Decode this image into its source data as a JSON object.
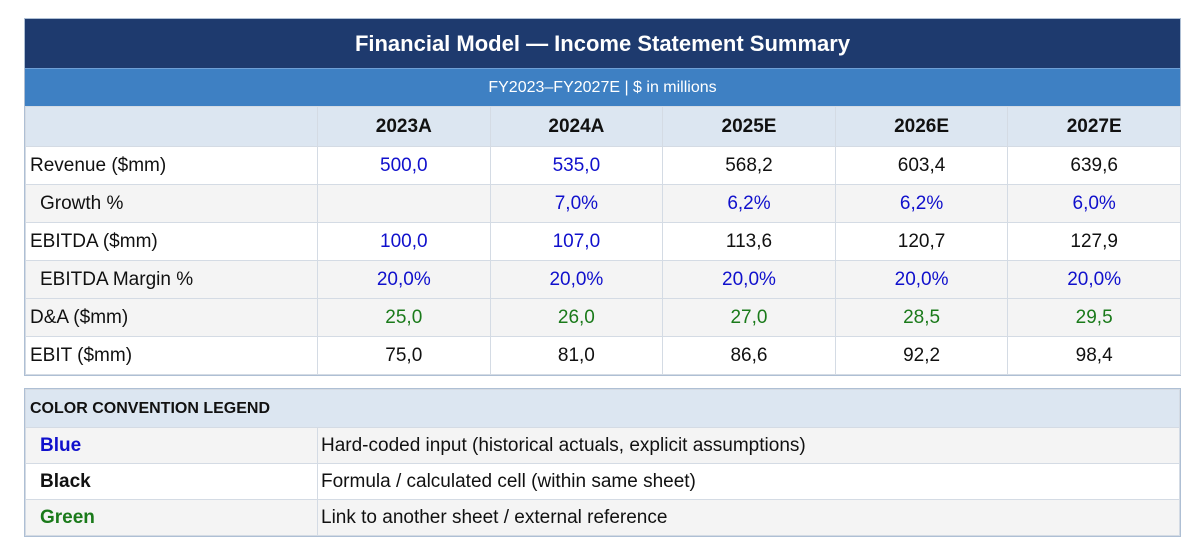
{
  "header": {
    "title": "Financial Model — Income Statement Summary",
    "subtitle": "FY2023–FY2027E  |  $ in millions"
  },
  "table": {
    "columns": [
      "2023A",
      "2024A",
      "2025E",
      "2026E",
      "2027E"
    ],
    "rows": [
      {
        "label": "Revenue ($mm)",
        "cells": [
          "500,0",
          "535,0",
          "568,2",
          "603,4",
          "639,6"
        ]
      },
      {
        "label": "Growth %",
        "cells": [
          "",
          "7,0%",
          "6,2%",
          "6,2%",
          "6,0%"
        ]
      },
      {
        "label": "EBITDA ($mm)",
        "cells": [
          "100,0",
          "107,0",
          "113,6",
          "120,7",
          "127,9"
        ]
      },
      {
        "label": "EBITDA Margin %",
        "cells": [
          "20,0%",
          "20,0%",
          "20,0%",
          "20,0%",
          "20,0%"
        ]
      },
      {
        "label": "D&A ($mm)",
        "cells": [
          "25,0",
          "26,0",
          "27,0",
          "28,5",
          "29,5"
        ]
      },
      {
        "label": "EBIT ($mm)",
        "cells": [
          "75,0",
          "81,0",
          "86,6",
          "92,2",
          "98,4"
        ]
      }
    ]
  },
  "legend": {
    "title": "COLOR CONVENTION LEGEND",
    "items": [
      {
        "key": "Blue",
        "desc": "Hard-coded input (historical actuals, explicit assumptions)"
      },
      {
        "key": "Black",
        "desc": "Formula / calculated cell (within same sheet)"
      },
      {
        "key": "Green",
        "desc": "Link to another sheet / external reference"
      }
    ]
  },
  "colors": {
    "header_bg": "#1e3a6e",
    "subheader_bg": "#3e80c3",
    "input_blue": "#1010cc",
    "formula_black": "#111111",
    "link_green": "#1a7a1a"
  }
}
